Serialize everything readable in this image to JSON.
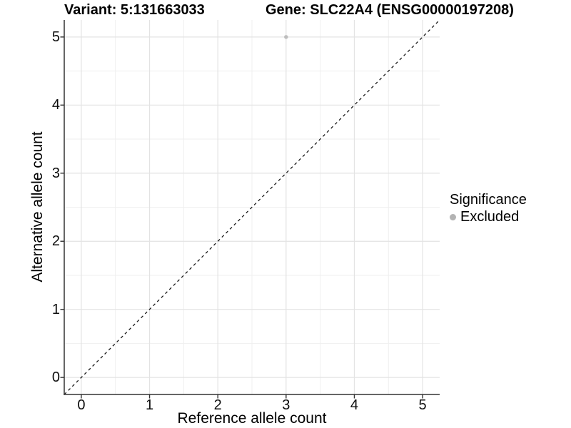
{
  "header": {
    "variant_title": "Variant: 5:131663033",
    "gene_title": "Gene: SLC22A4 (ENSG00000197208)"
  },
  "legend": {
    "title": "Significance",
    "items": [
      {
        "label": "Excluded",
        "color": "#b3b3b3"
      }
    ]
  },
  "chart_data": {
    "type": "scatter",
    "title": "Variant: 5:131663033 — Gene: SLC22A4 (ENSG00000197208)",
    "xlabel": "Reference allele count",
    "ylabel": "Alternative allele count",
    "xlim": [
      -0.25,
      5.25
    ],
    "ylim": [
      -0.25,
      5.25
    ],
    "x_ticks": [
      0,
      1,
      2,
      3,
      4,
      5
    ],
    "y_ticks": [
      0,
      1,
      2,
      3,
      4,
      5
    ],
    "x_minor_ticks": [
      0.5,
      1.5,
      2.5,
      3.5,
      4.5
    ],
    "y_minor_ticks": [
      0.5,
      1.5,
      2.5,
      3.5,
      4.5
    ],
    "grid": "major-and-minor",
    "legend_position": "right",
    "series": [
      {
        "name": "Excluded",
        "color": "#bdbdbd",
        "marker_diameter_px": 5.5,
        "points": [
          {
            "x": 3,
            "y": 5
          }
        ]
      }
    ],
    "reference_lines": [
      {
        "name": "identity-line",
        "style": "dashed",
        "color": "#1a1a1a",
        "x1": -0.25,
        "y1": -0.25,
        "x2": 5.25,
        "y2": 5.25
      }
    ],
    "colors": {
      "major_grid": "#e3e3e3",
      "minor_grid": "#efefef",
      "axis_line": "#333333",
      "tick_mark": "#333333",
      "tick_text": "#0d0d0d"
    }
  }
}
